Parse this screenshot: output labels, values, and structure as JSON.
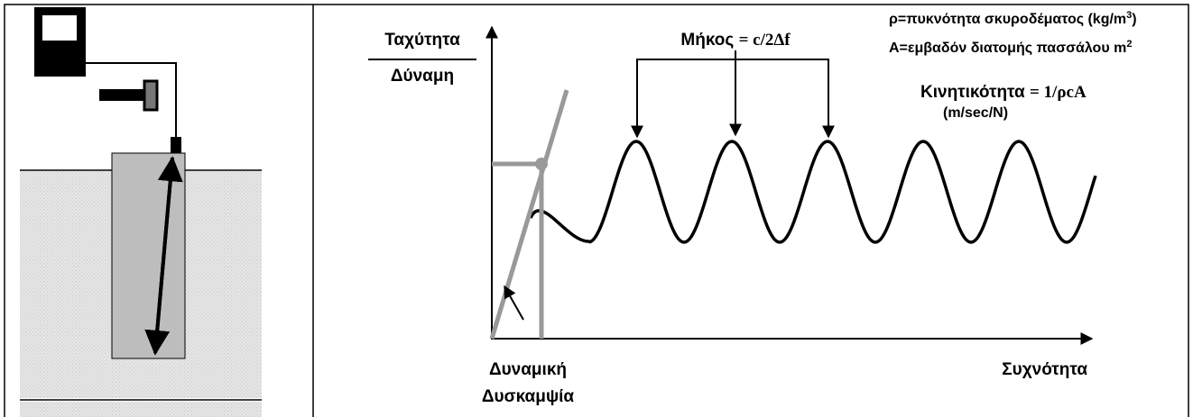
{
  "graph": {
    "y_label_top": "Ταχύτητα",
    "y_label_bottom": "Δύναμη",
    "x_label": "Συχνότητα",
    "length_label": "Μήκος",
    "length_formula": "= c/2Δf",
    "density_note": "ρ=πυκνότητα σκυροδέματος (kg/m",
    "density_sup": "3",
    "density_close": ")",
    "area_note": "Α=εμβαδόν διατομής πασσάλου m",
    "area_sup": "2",
    "mobility_label": "Κινητικότητα",
    "mobility_formula": "= 1/ρcA",
    "mobility_units": "(m/sec/N)",
    "stiffness_line1": "Δυναμική",
    "stiffness_line2": "Δυσκαμψία"
  }
}
